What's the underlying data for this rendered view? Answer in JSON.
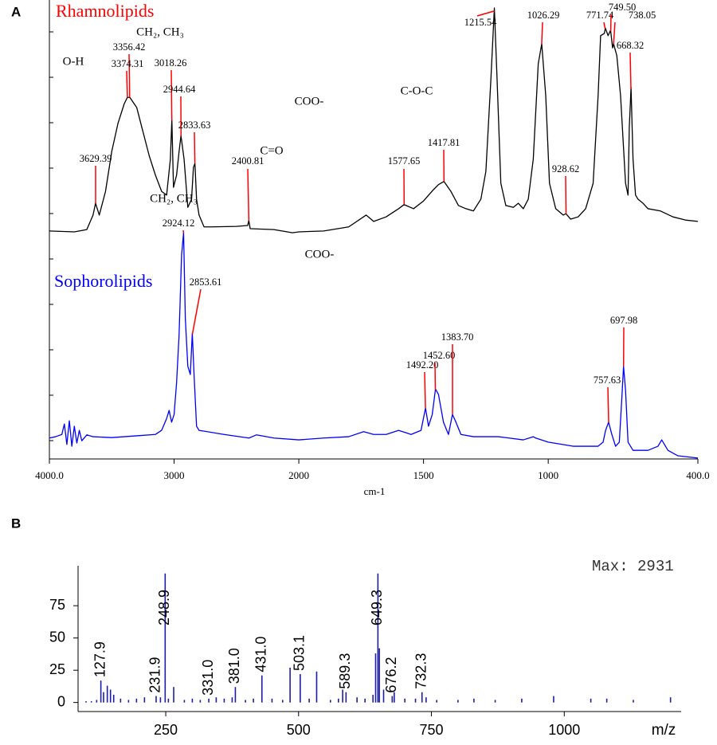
{
  "chart_data": [
    {
      "type": "spectrum",
      "panel_label": "A",
      "x_label": "cm-1",
      "xlim": [
        4000,
        400
      ],
      "xticks": [
        {
          "value": 4000,
          "label": "4000.0"
        },
        3000,
        2000,
        1500,
        1000,
        {
          "value": 400,
          "label": "400.0"
        }
      ],
      "ylim": [
        0,
        100
      ],
      "peak_color": "#ff0000",
      "series": [
        {
          "name": "Rhamnolipids",
          "name_color": "#ff0000",
          "color": "#000000",
          "x": [
            4000,
            3800,
            3700,
            3650,
            3630,
            3600,
            3550,
            3500,
            3450,
            3400,
            3375,
            3355,
            3300,
            3250,
            3200,
            3150,
            3100,
            3060,
            3030,
            3018,
            3005,
            2980,
            2960,
            2945,
            2920,
            2890,
            2860,
            2845,
            2833,
            2820,
            2800,
            2760,
            2700,
            2500,
            2410,
            2401,
            2390,
            2200,
            2050,
            2000,
            1900,
            1800,
            1730,
            1700,
            1650,
            1600,
            1578,
            1540,
            1500,
            1460,
            1440,
            1418,
            1390,
            1360,
            1330,
            1300,
            1270,
            1250,
            1230,
            1216,
            1205,
            1190,
            1170,
            1140,
            1120,
            1100,
            1080,
            1060,
            1040,
            1026,
            1010,
            995,
            970,
            940,
            929,
            910,
            880,
            850,
            820,
            800,
            790,
            775,
            771,
            760,
            750,
            742,
            738,
            725,
            710,
            690,
            680,
            675,
            668,
            660,
            650,
            640,
            620,
            600,
            550,
            500,
            450,
            400
          ],
          "values": [
            50.2,
            50.0,
            50.5,
            53.7,
            56.3,
            53.7,
            58.9,
            67.7,
            73.9,
            78.2,
            79.6,
            79.6,
            77.4,
            72.1,
            66.8,
            62.5,
            58.9,
            58.1,
            66.0,
            74.7,
            59.8,
            62.5,
            67.7,
            71.2,
            66.0,
            55.4,
            57.2,
            64.2,
            65.1,
            57.2,
            53.7,
            51.1,
            51.1,
            51.2,
            51.4,
            52.5,
            50.7,
            50.5,
            49.8,
            50.0,
            50.2,
            51.1,
            53.7,
            52.3,
            53.3,
            55.1,
            56.0,
            55.1,
            56.8,
            59.3,
            60.4,
            61.1,
            58.9,
            55.8,
            55.1,
            54.6,
            57.2,
            63.3,
            83.5,
            99.3,
            83.5,
            60.7,
            55.8,
            55.4,
            56.3,
            55.1,
            57.2,
            66.0,
            87.0,
            91.4,
            80.0,
            60.7,
            55.1,
            53.7,
            54.0,
            52.8,
            53.3,
            55.1,
            60.7,
            80.0,
            93.2,
            93.7,
            94.9,
            93.2,
            94.4,
            90.5,
            91.4,
            88.8,
            80.0,
            60.7,
            58.1,
            73.0,
            81.8,
            66.0,
            58.1,
            57.2,
            56.3,
            55.1,
            54.6,
            53.3,
            52.6,
            52.3
          ],
          "peaks": [
            {
              "value": 3629.39,
              "label": "3629.39"
            },
            {
              "value": 3356.42,
              "label": "3356.42"
            },
            {
              "value": 3374.31,
              "label": "3374.31"
            },
            {
              "value": 3018.26,
              "label": "3018.26"
            },
            {
              "value": 2944.64,
              "label": "2944.64"
            },
            {
              "value": 2833.63,
              "label": "2833.63"
            },
            {
              "value": 2400.81,
              "label": "2400.81"
            },
            {
              "value": 1577.65,
              "label": "1577.65"
            },
            {
              "value": 1417.81,
              "label": "1417.81"
            },
            {
              "value": 1215.54,
              "label": "1215.54"
            },
            {
              "value": 1026.29,
              "label": "1026.29"
            },
            {
              "value": 928.62,
              "label": "928.62"
            },
            {
              "value": 771.74,
              "label": "771.74"
            },
            {
              "value": 749.5,
              "label": "749.50"
            },
            {
              "value": 738.05,
              "label": "738.05"
            },
            {
              "value": 668.32,
              "label": "668.32"
            }
          ]
        },
        {
          "name": "Sophorolipids",
          "name_color": "#0000ff",
          "color": "#0000ff",
          "x": [
            4000,
            3950,
            3900,
            3880,
            3860,
            3840,
            3820,
            3800,
            3780,
            3760,
            3740,
            3700,
            3650,
            3500,
            3300,
            3150,
            3100,
            3060,
            3040,
            3020,
            3000,
            2980,
            2960,
            2940,
            2924,
            2910,
            2890,
            2870,
            2854,
            2840,
            2820,
            2800,
            2600,
            2400,
            2340,
            2200,
            2000,
            1900,
            1800,
            1740,
            1700,
            1650,
            1600,
            1550,
            1510,
            1492,
            1480,
            1465,
            1452,
            1440,
            1420,
            1400,
            1384,
            1370,
            1350,
            1300,
            1200,
            1100,
            1060,
            1050,
            1000,
            900,
            800,
            780,
            770,
            758,
            745,
            730,
            715,
            705,
            698,
            690,
            680,
            660,
            600,
            560,
            545,
            520,
            480,
            400
          ],
          "values": [
            4.6,
            4.9,
            5.4,
            7.7,
            3.2,
            8.4,
            2.8,
            7.2,
            3.5,
            6.3,
            4.0,
            5.3,
            4.9,
            4.7,
            5.1,
            5.4,
            6.3,
            8.9,
            10.7,
            8.1,
            9.8,
            16.8,
            27.4,
            44.9,
            49.8,
            30.9,
            20.4,
            18.6,
            27.7,
            18.6,
            7.2,
            6.3,
            5.4,
            4.6,
            5.3,
            4.6,
            4.2,
            4.6,
            4.9,
            6.0,
            5.4,
            5.4,
            6.3,
            5.4,
            6.3,
            11.2,
            7.2,
            9.8,
            15.4,
            14.2,
            8.1,
            5.4,
            9.8,
            8.1,
            5.4,
            4.9,
            4.9,
            4.2,
            4.9,
            4.6,
            3.7,
            2.8,
            2.8,
            3.7,
            6.3,
            8.1,
            5.4,
            2.8,
            3.7,
            13.3,
            20.4,
            15.1,
            3.7,
            1.9,
            1.9,
            2.8,
            4.2,
            1.9,
            0.7,
            0.2
          ],
          "peaks": [
            {
              "value": 2924.12,
              "label": "2924.12"
            },
            {
              "value": 2853.61,
              "label": "2853.61"
            },
            {
              "value": 1492.2,
              "label": "1492.20"
            },
            {
              "value": 1452.6,
              "label": "1452.60"
            },
            {
              "value": 1383.7,
              "label": "1383.70"
            },
            {
              "value": 757.63,
              "label": "757.63"
            },
            {
              "value": 697.98,
              "label": "697.98"
            }
          ]
        }
      ],
      "annotations": [
        "O-H",
        "CH₂, CH₃",
        "COO-",
        "C-O-C",
        "C=O",
        "CH₂, CH₃",
        "COO-"
      ]
    },
    {
      "type": "stem",
      "panel_label": "B",
      "x_label": "m/z",
      "max_label": "Max: 2931",
      "color": "#1c1ca8",
      "xlim": [
        85,
        1220
      ],
      "xticks": [
        250,
        500,
        750,
        1000
      ],
      "ylim": [
        -7,
        106
      ],
      "yticks": [
        0,
        25,
        50,
        75
      ],
      "x": [
        100,
        110,
        120,
        127.9,
        133,
        140,
        146,
        152,
        165,
        180,
        195,
        210,
        231.9,
        240,
        248.9,
        255,
        265,
        285,
        300,
        315,
        331,
        345,
        360,
        375,
        381,
        400,
        415,
        431,
        450,
        470,
        484,
        503.1,
        520,
        534,
        560,
        575,
        583,
        589.3,
        610,
        625,
        640,
        645,
        649.3,
        652,
        660,
        676.2,
        680,
        700,
        720,
        732.3,
        740,
        760,
        800,
        830,
        870,
        920,
        980,
        1050,
        1080,
        1130,
        1200
      ],
      "values": [
        1,
        1,
        2,
        17,
        8,
        13,
        10,
        6,
        3,
        2,
        3,
        4,
        5,
        4,
        100,
        3,
        12,
        2,
        3,
        2,
        3,
        4,
        3,
        4,
        12,
        2,
        3,
        21,
        3,
        2,
        27,
        22,
        3,
        24,
        2,
        3,
        10,
        8,
        4,
        3,
        6,
        38,
        100,
        42,
        10,
        5,
        8,
        3,
        3,
        8,
        4,
        2,
        2,
        3,
        2,
        3,
        5,
        3,
        3,
        2,
        4
      ],
      "labels": [
        null,
        null,
        null,
        "127.9",
        null,
        null,
        null,
        null,
        null,
        null,
        null,
        null,
        "231.9",
        null,
        "248.9",
        null,
        null,
        null,
        null,
        null,
        "331.0",
        null,
        null,
        null,
        "381.0",
        null,
        null,
        "431.0",
        null,
        null,
        null,
        "503.1",
        null,
        null,
        null,
        null,
        null,
        "589.3",
        null,
        null,
        null,
        null,
        "649.3",
        null,
        null,
        "676.2",
        null,
        null,
        null,
        "732.3",
        null,
        null,
        null,
        null,
        null,
        null,
        null,
        null,
        null,
        null,
        null
      ]
    }
  ]
}
